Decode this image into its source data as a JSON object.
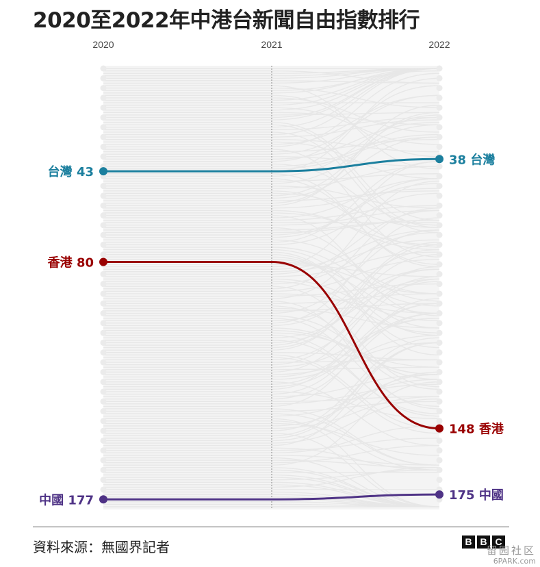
{
  "title": "2020至2022年中港台新聞自由指數排行",
  "source": "資料來源：無國界記者",
  "logo": [
    "B",
    "B",
    "C"
  ],
  "watermark": {
    "cn": "留园社区",
    "en": "6PARK.com"
  },
  "colors": {
    "taiwan": "#1b7f9e",
    "hongkong": "#990000",
    "china": "#4f3386",
    "background_lines": "#e7e7e7",
    "panel": "#f4f4f4"
  },
  "chart_data": {
    "type": "line",
    "title": "2020至2022年中港台新聞自由指數排行",
    "x": [
      "2020",
      "2021",
      "2022"
    ],
    "y_axis": "rank",
    "y_inverted": true,
    "ylim": [
      1,
      180
    ],
    "grid": false,
    "series": [
      {
        "name": "台灣",
        "key": "taiwan",
        "values": [
          43,
          43,
          38
        ]
      },
      {
        "name": "香港",
        "key": "hongkong",
        "values": [
          80,
          80,
          148
        ]
      },
      {
        "name": "中國",
        "key": "china",
        "values": [
          177,
          177,
          175
        ]
      }
    ]
  }
}
